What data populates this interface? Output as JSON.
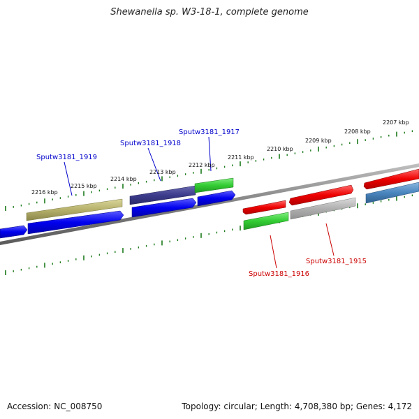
{
  "title": "Shewanella sp. W3-18-1, complete genome",
  "footer": {
    "accession": "Accession: NC_008750",
    "summary": "Topology: circular; Length: 4,708,380 bp; Genes: 4,172"
  },
  "ruler": {
    "color": "#1a7a1a",
    "labels": [
      "2216 kbp",
      "2215 kbp",
      "2214 kbp",
      "2213 kbp",
      "2212 kbp",
      "2211 kbp",
      "2210 kbp",
      "2209 kbp",
      "2208 kbp",
      "2207 kbp"
    ]
  },
  "gene_labels": [
    {
      "text": "Sputw3181_1919",
      "color": "#0000cc"
    },
    {
      "text": "Sputw3181_1918",
      "color": "#0000cc"
    },
    {
      "text": "Sputw3181_1917",
      "color": "#0000cc"
    },
    {
      "text": "Sputw3181_1916",
      "color": "#cc0000"
    },
    {
      "text": "Sputw3181_1915",
      "color": "#cc0000"
    }
  ],
  "colors": {
    "backbone": "#808080",
    "blue": "#0000ee",
    "navy": "#3c3c8c",
    "green": "#33cc33",
    "olive": "#b5b06a",
    "red": "#ee0000",
    "grey": "#b0b0b0",
    "steel": "#4a86be"
  }
}
